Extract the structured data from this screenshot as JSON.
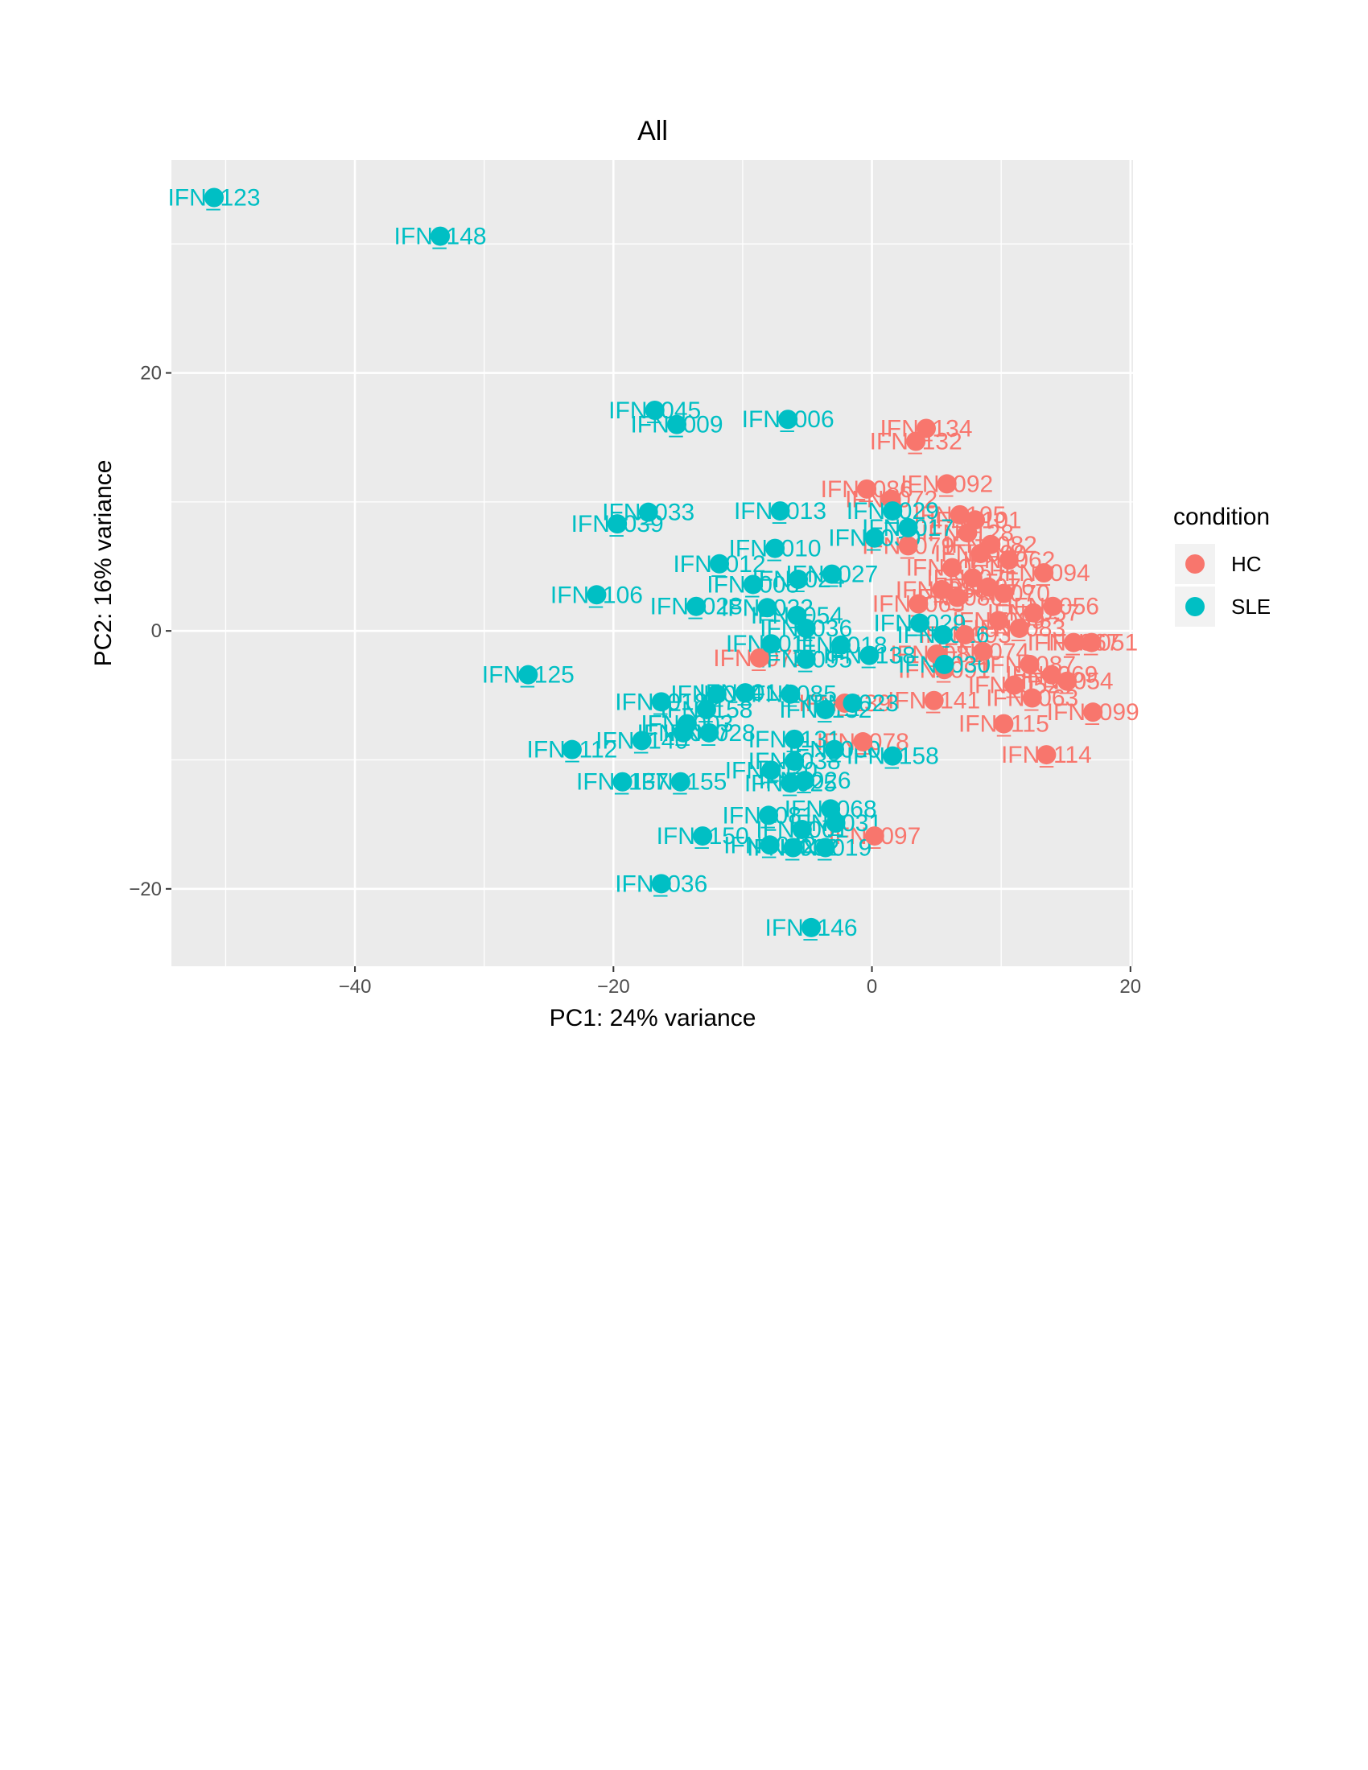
{
  "chart_data": {
    "type": "scatter",
    "title": "All",
    "xlabel": "PC1: 24% variance",
    "ylabel": "PC2: 16% variance",
    "xlim": [
      -54.2,
      20.2
    ],
    "ylim": [
      -26,
      36.5
    ],
    "x_ticks": [
      -40,
      -20,
      0,
      20
    ],
    "x_tick_labels": [
      "−40",
      "−20",
      "0",
      "20"
    ],
    "y_ticks": [
      -20,
      0,
      20
    ],
    "y_tick_labels": [
      "−20",
      "0",
      "20"
    ],
    "grid": true,
    "legend": {
      "title": "condition",
      "position": "right",
      "entries": [
        {
          "label": "HC",
          "color": "#F8766D"
        },
        {
          "label": "SLE",
          "color": "#00BFC4"
        }
      ]
    },
    "series": [
      {
        "name": "HC",
        "color": "#F8766D",
        "points": [
          {
            "x": 4.2,
            "y": 15.7,
            "label": "IFN_134"
          },
          {
            "x": 3.4,
            "y": 14.7,
            "label": "IFN_132"
          },
          {
            "x": 5.8,
            "y": 11.4,
            "label": "IFN_092"
          },
          {
            "x": -0.4,
            "y": 11.0,
            "label": "IFN_086"
          },
          {
            "x": 1.5,
            "y": 10.2,
            "label": "IFN_072"
          },
          {
            "x": 6.8,
            "y": 9.0,
            "label": "IFN_105"
          },
          {
            "x": 8.0,
            "y": 8.6,
            "label": "IFN_101"
          },
          {
            "x": 7.4,
            "y": 7.6,
            "label": "IFN_128"
          },
          {
            "x": 9.2,
            "y": 6.7,
            "label": "IFN_082"
          },
          {
            "x": 2.8,
            "y": 6.6,
            "label": "IFN_079"
          },
          {
            "x": 8.4,
            "y": 6.0,
            "label": "IFN_090"
          },
          {
            "x": 10.6,
            "y": 5.5,
            "label": "IFN_062"
          },
          {
            "x": 13.3,
            "y": 4.5,
            "label": "IFN_094"
          },
          {
            "x": 6.2,
            "y": 4.9,
            "label": "IFN_061"
          },
          {
            "x": 7.8,
            "y": 4.1,
            "label": "IFN_071"
          },
          {
            "x": 9.0,
            "y": 3.4,
            "label": "IFN_076"
          },
          {
            "x": 10.2,
            "y": 2.9,
            "label": "IFN_070"
          },
          {
            "x": 5.4,
            "y": 3.2,
            "label": "IFN_088"
          },
          {
            "x": 3.6,
            "y": 2.1,
            "label": "IFN_065"
          },
          {
            "x": 14.0,
            "y": 1.9,
            "label": "IFN_056"
          },
          {
            "x": 12.5,
            "y": 1.4,
            "label": "IFN_057"
          },
          {
            "x": 6.6,
            "y": 2.6,
            "label": "IFN_080"
          },
          {
            "x": 9.8,
            "y": 0.8,
            "label": "IFN_089"
          },
          {
            "x": 11.4,
            "y": 0.2,
            "label": "IFN_083"
          },
          {
            "x": 7.2,
            "y": -0.3,
            "label": "IFN_093"
          },
          {
            "x": 17.0,
            "y": -0.9,
            "label": "IFN_051"
          },
          {
            "x": 15.6,
            "y": -0.9,
            "label": "IFN_067"
          },
          {
            "x": 8.6,
            "y": -1.6,
            "label": "IFN_074"
          },
          {
            "x": 5.0,
            "y": -1.8,
            "label": "IFN_081"
          },
          {
            "x": -8.7,
            "y": -2.1,
            "label": "IFN_072"
          },
          {
            "x": 12.2,
            "y": -2.6,
            "label": "IFN_087"
          },
          {
            "x": 13.9,
            "y": -3.4,
            "label": "IFN_069"
          },
          {
            "x": 5.6,
            "y": -3.0,
            "label": "IFN_091"
          },
          {
            "x": 15.1,
            "y": -3.9,
            "label": "IFN_054"
          },
          {
            "x": 11.0,
            "y": -4.2,
            "label": "IFN_052"
          },
          {
            "x": 12.4,
            "y": -5.2,
            "label": "IFN_063"
          },
          {
            "x": 17.1,
            "y": -6.3,
            "label": "IFN_099"
          },
          {
            "x": 4.8,
            "y": -5.4,
            "label": "IFN_141"
          },
          {
            "x": -2.1,
            "y": -5.6,
            "label": "IFN_139"
          },
          {
            "x": 10.2,
            "y": -7.2,
            "label": "IFN_115"
          },
          {
            "x": -0.7,
            "y": -8.6,
            "label": "IFN_078"
          },
          {
            "x": 13.5,
            "y": -9.6,
            "label": "IFN_114"
          },
          {
            "x": 0.2,
            "y": -15.9,
            "label": "IFN_097"
          }
        ]
      },
      {
        "name": "SLE",
        "color": "#00BFC4",
        "points": [
          {
            "x": -50.9,
            "y": 33.6,
            "label": "IFN_123"
          },
          {
            "x": -33.4,
            "y": 30.6,
            "label": "IFN_148"
          },
          {
            "x": -16.8,
            "y": 17.1,
            "label": "IFN_045"
          },
          {
            "x": -15.1,
            "y": 16.0,
            "label": "IFN_009"
          },
          {
            "x": -6.5,
            "y": 16.4,
            "label": "IFN_006"
          },
          {
            "x": -17.3,
            "y": 9.2,
            "label": "IFN_033"
          },
          {
            "x": -19.7,
            "y": 8.3,
            "label": "IFN_039"
          },
          {
            "x": -7.1,
            "y": 9.3,
            "label": "IFN_013"
          },
          {
            "x": 1.6,
            "y": 9.3,
            "label": "IFN_029"
          },
          {
            "x": 2.8,
            "y": 8.0,
            "label": "IFN_017"
          },
          {
            "x": 0.2,
            "y": 7.2,
            "label": "IFN_030"
          },
          {
            "x": -7.5,
            "y": 6.4,
            "label": "IFN_010"
          },
          {
            "x": -11.8,
            "y": 5.2,
            "label": "IFN_012"
          },
          {
            "x": -3.1,
            "y": 4.4,
            "label": "IFN_027"
          },
          {
            "x": -5.7,
            "y": 4.0,
            "label": "IFN_024"
          },
          {
            "x": -9.2,
            "y": 3.6,
            "label": "IFN_008"
          },
          {
            "x": -21.3,
            "y": 2.8,
            "label": "IFN_106"
          },
          {
            "x": -13.6,
            "y": 1.9,
            "label": "IFN_028"
          },
          {
            "x": -8.1,
            "y": 1.8,
            "label": "IFN_022"
          },
          {
            "x": -5.8,
            "y": 1.2,
            "label": "IFN_054"
          },
          {
            "x": -5.1,
            "y": 0.2,
            "label": "IFN_036"
          },
          {
            "x": 3.7,
            "y": 0.6,
            "label": "IFN_029"
          },
          {
            "x": 5.5,
            "y": -0.3,
            "label": "IFN_016"
          },
          {
            "x": -7.8,
            "y": -1.0,
            "label": "IFN_011"
          },
          {
            "x": -2.4,
            "y": -1.1,
            "label": "IFN_018"
          },
          {
            "x": -0.2,
            "y": -1.9,
            "label": "IFN_138"
          },
          {
            "x": -5.1,
            "y": -2.2,
            "label": "IFN_095"
          },
          {
            "x": 5.6,
            "y": -2.6,
            "label": "IFN_030"
          },
          {
            "x": -26.6,
            "y": -3.4,
            "label": "IFN_125"
          },
          {
            "x": -16.3,
            "y": -5.5,
            "label": "IFN_018"
          },
          {
            "x": -12.0,
            "y": -4.9,
            "label": "IFN_004"
          },
          {
            "x": -9.8,
            "y": -4.8,
            "label": "IFN_014"
          },
          {
            "x": -6.3,
            "y": -4.9,
            "label": "IFN_085"
          },
          {
            "x": -12.8,
            "y": -6.1,
            "label": "IFN_158"
          },
          {
            "x": -3.6,
            "y": -6.1,
            "label": "IFN_132"
          },
          {
            "x": -1.5,
            "y": -5.6,
            "label": "IFN_023"
          },
          {
            "x": -14.3,
            "y": -7.2,
            "label": "IFN_003"
          },
          {
            "x": -14.6,
            "y": -7.9,
            "label": "IFN_007"
          },
          {
            "x": -12.6,
            "y": -7.9,
            "label": "IFN_028"
          },
          {
            "x": -17.8,
            "y": -8.5,
            "label": "IFN_140"
          },
          {
            "x": -6.0,
            "y": -8.4,
            "label": "IFN_131"
          },
          {
            "x": -23.2,
            "y": -9.2,
            "label": "IFN_112"
          },
          {
            "x": -2.9,
            "y": -9.2,
            "label": "IFN_030"
          },
          {
            "x": 1.6,
            "y": -9.7,
            "label": "IFN_158"
          },
          {
            "x": -6.0,
            "y": -10.1,
            "label": "IFN_038"
          },
          {
            "x": -7.8,
            "y": -10.8,
            "label": "IFN_020"
          },
          {
            "x": -19.3,
            "y": -11.7,
            "label": "IFN_137"
          },
          {
            "x": -14.8,
            "y": -11.7,
            "label": "IFN_155"
          },
          {
            "x": -5.2,
            "y": -11.6,
            "label": "IFN_026"
          },
          {
            "x": -6.3,
            "y": -11.8,
            "label": "IFN_025"
          },
          {
            "x": -3.2,
            "y": -13.8,
            "label": "IFN_068"
          },
          {
            "x": -8.0,
            "y": -14.3,
            "label": "IFN_081"
          },
          {
            "x": -2.8,
            "y": -14.9,
            "label": "IFN_031"
          },
          {
            "x": -5.4,
            "y": -15.4,
            "label": "IFN_001"
          },
          {
            "x": -13.1,
            "y": -15.9,
            "label": "IFN_150"
          },
          {
            "x": -7.9,
            "y": -16.6,
            "label": "IFN_042"
          },
          {
            "x": -6.1,
            "y": -16.8,
            "label": "IFN_062"
          },
          {
            "x": -3.6,
            "y": -16.8,
            "label": "IFN_019"
          },
          {
            "x": -16.3,
            "y": -19.6,
            "label": "IFN_036"
          },
          {
            "x": -4.7,
            "y": -23.0,
            "label": "IFN_146"
          }
        ]
      }
    ]
  }
}
